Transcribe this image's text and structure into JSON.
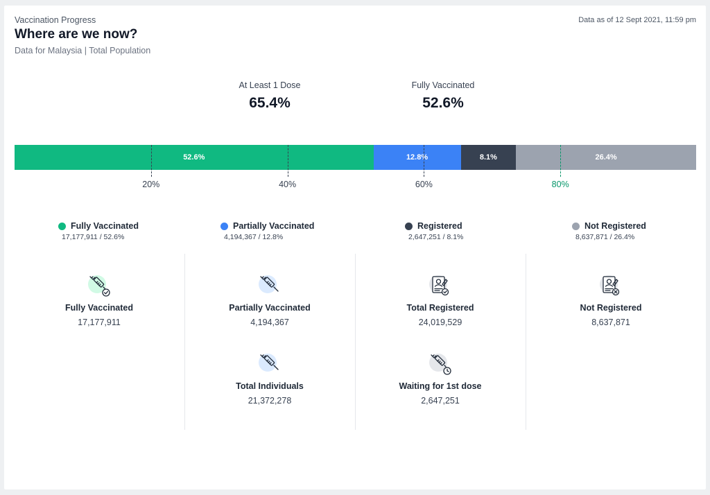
{
  "header": {
    "eyebrow": "Vaccination Progress",
    "title": "Where are we now?",
    "subtitle": "Data for Malaysia | Total Population",
    "as_of": "Data as of 12 Sept 2021, 11:59 pm"
  },
  "kpis": [
    {
      "label": "At Least 1 Dose",
      "value": "65.4%"
    },
    {
      "label": "Fully Vaccinated",
      "value": "52.6%"
    }
  ],
  "colors": {
    "fully": "#10b981",
    "partially": "#3b82f6",
    "registered": "#374151",
    "not_registered": "#9ca3af",
    "tick_highlight": "#059669"
  },
  "chart_data": {
    "type": "bar",
    "orientation": "horizontal-stacked",
    "segments": [
      {
        "name": "Fully Vaccinated",
        "value": 52.6,
        "label": "52.6%",
        "color": "#10b981"
      },
      {
        "name": "Partially Vaccinated",
        "value": 12.8,
        "label": "12.8%",
        "color": "#3b82f6"
      },
      {
        "name": "Registered",
        "value": 8.1,
        "label": "8.1%",
        "color": "#374151"
      },
      {
        "name": "Not Registered",
        "value": 26.4,
        "label": "26.4%",
        "color": "#9ca3af"
      }
    ],
    "ticks": [
      {
        "value": 20,
        "label": "20%",
        "highlight": false
      },
      {
        "value": 40,
        "label": "40%",
        "highlight": false
      },
      {
        "value": 60,
        "label": "60%",
        "highlight": false
      },
      {
        "value": 80,
        "label": "80%",
        "highlight": true
      }
    ],
    "xlim": [
      0,
      100
    ]
  },
  "legend": [
    {
      "name": "Fully Vaccinated",
      "detail": "17,177,911 / 52.6%",
      "color": "#10b981"
    },
    {
      "name": "Partially Vaccinated",
      "detail": "4,194,367 / 12.8%",
      "color": "#3b82f6"
    },
    {
      "name": "Registered",
      "detail": "2,647,251 / 8.1%",
      "color": "#374151"
    },
    {
      "name": "Not Registered",
      "detail": "8,637,871 / 26.4%",
      "color": "#9ca3af"
    }
  ],
  "stats": [
    {
      "name": "Fully Vaccinated",
      "value": "17,177,911",
      "icon": "syringe-check-icon",
      "icon_bg": "#d1fae5"
    },
    {
      "name": "Partially Vaccinated",
      "value": "4,194,367",
      "icon": "syringe-icon",
      "icon_bg": "#dbeafe"
    },
    {
      "name": "Total Individuals",
      "value": "21,372,278",
      "icon": "syringe-icon",
      "icon_bg": "#dbeafe"
    },
    {
      "name": "Total Registered",
      "value": "24,019,529",
      "icon": "registration-check-icon",
      "icon_bg": "#e5e7eb"
    },
    {
      "name": "Waiting for 1st dose",
      "value": "2,647,251",
      "icon": "syringe-clock-icon",
      "icon_bg": "#e5e7eb"
    },
    {
      "name": "Not Registered",
      "value": "8,637,871",
      "icon": "registration-cross-icon",
      "icon_bg": "#e5e7eb"
    }
  ]
}
